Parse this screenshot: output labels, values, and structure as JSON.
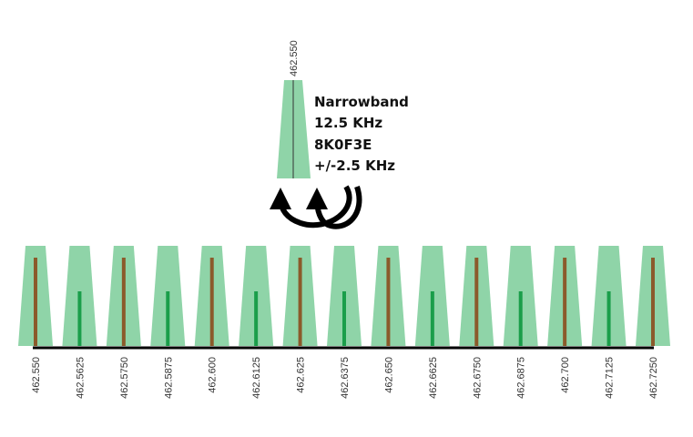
{
  "detail": {
    "frequency": "462.550",
    "lines": [
      "Narrowband",
      "12.5 KHz",
      "8K0F3E",
      "+/-2.5 KHz"
    ]
  },
  "channel_fill": "#8fd4a8",
  "channels": [
    {
      "label": "462.550",
      "line_color": "#8b5a2b"
    },
    {
      "label": "462.5625",
      "line_color": "#1a9e4a"
    },
    {
      "label": "462.5750",
      "line_color": "#8b5a2b"
    },
    {
      "label": "462.5875",
      "line_color": "#1a9e4a"
    },
    {
      "label": "462.600",
      "line_color": "#8b5a2b"
    },
    {
      "label": "462.6125",
      "line_color": "#1a9e4a"
    },
    {
      "label": "462.625",
      "line_color": "#8b5a2b"
    },
    {
      "label": "462.6375",
      "line_color": "#1a9e4a"
    },
    {
      "label": "462.650",
      "line_color": "#8b5a2b"
    },
    {
      "label": "462.6625",
      "line_color": "#1a9e4a"
    },
    {
      "label": "462.6750",
      "line_color": "#8b5a2b"
    },
    {
      "label": "462.6875",
      "line_color": "#1a9e4a"
    },
    {
      "label": "462.700",
      "line_color": "#8b5a2b"
    },
    {
      "label": "462.7125",
      "line_color": "#1a9e4a"
    },
    {
      "label": "462.7250",
      "line_color": "#8b5a2b"
    }
  ]
}
